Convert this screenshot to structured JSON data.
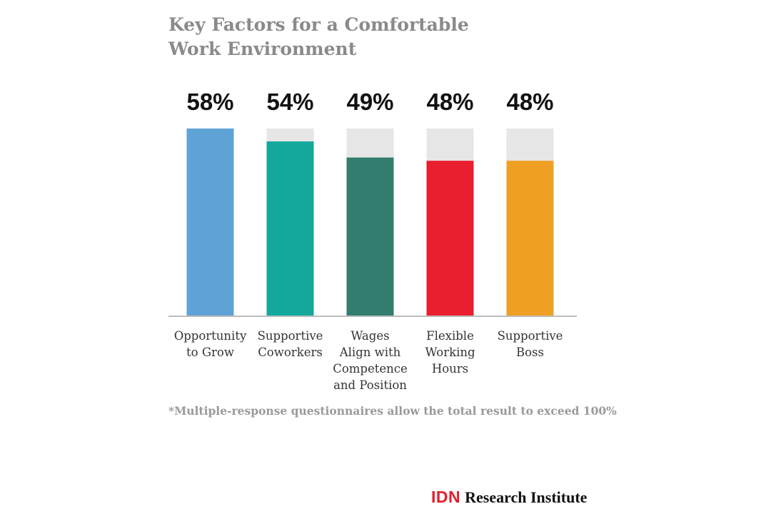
{
  "chart_data": {
    "type": "bar",
    "title_lines": [
      "Key Factors for a Comfortable",
      "Work Environment"
    ],
    "categories": [
      [
        "Opportunity",
        "to Grow"
      ],
      [
        "Supportive",
        "Coworkers"
      ],
      [
        "Wages",
        "Align with",
        "Competence",
        "and Position"
      ],
      [
        "Flexible",
        "Working",
        "Hours"
      ],
      [
        "Supportive",
        "Boss"
      ]
    ],
    "values": [
      58,
      54,
      49,
      48,
      48
    ],
    "value_labels": [
      "58%",
      "54%",
      "49%",
      "48%",
      "48%"
    ],
    "ylim": [
      0,
      58
    ],
    "bar_colors": [
      "#5fa3d6",
      "#14a89c",
      "#327d6d",
      "#e91e2f",
      "#eea025"
    ],
    "background_bar_color": "#e6e6e6",
    "axis_color": "#bdbdbd",
    "xlabel": "",
    "ylabel": "",
    "grid": false,
    "legend": "none"
  },
  "footnote": "*Multiple-response questionnaires allow the total result to exceed 100%",
  "logo": {
    "mark": "IDN",
    "text": "Research Institute"
  }
}
